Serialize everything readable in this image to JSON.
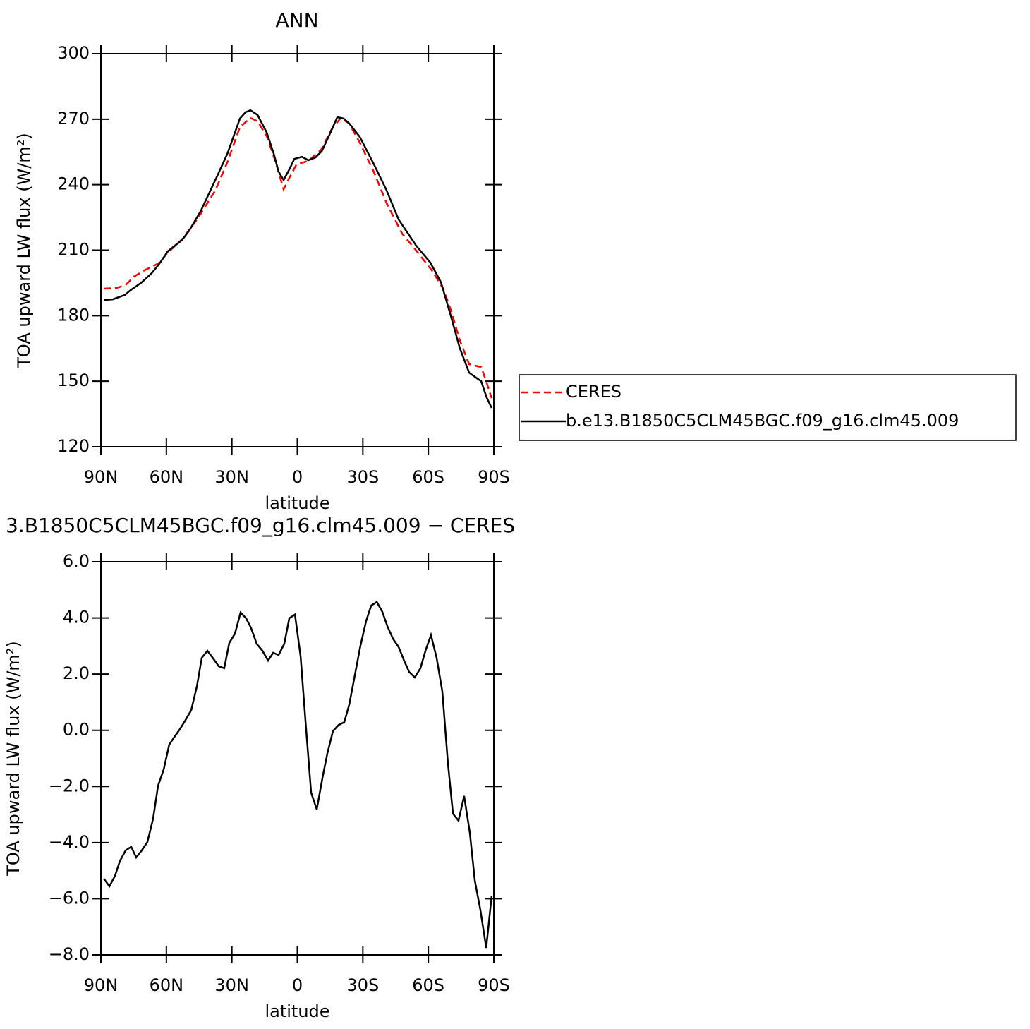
{
  "chart_data": [
    {
      "type": "line",
      "title": "ANN",
      "xlabel": "latitude",
      "ylabel": "TOA upward LW flux (W/m²)",
      "xlim": [
        90,
        -90
      ],
      "xticks": [
        {
          "value": 90,
          "label": "90N"
        },
        {
          "value": 60,
          "label": "60N"
        },
        {
          "value": 30,
          "label": "30N"
        },
        0,
        {
          "value": -30,
          "label": "30S"
        },
        {
          "value": -60,
          "label": "60S"
        },
        {
          "value": -90,
          "label": "90S"
        }
      ],
      "ylim": [
        120,
        300
      ],
      "yticks": [
        120,
        150,
        180,
        210,
        240,
        270,
        300
      ],
      "legend": "outside-right",
      "series": [
        {
          "name": "CERES",
          "color": "#ff0000",
          "dashed": true,
          "x": [
            88.7,
            82.9,
            78.7,
            74.8,
            70.0,
            63.5,
            59.3,
            52.8,
            45.7,
            37.6,
            32.1,
            26.3,
            21.5,
            18.2,
            14.0,
            10.1,
            6.3,
            3.7,
            0.4,
            -5.0,
            -10.9,
            -15.7,
            -19.9,
            -23.8,
            -28.6,
            -35.1,
            -40.9,
            -48.0,
            -54.5,
            -61.6,
            -66.8,
            -70.6,
            -74.4,
            -78.7,
            -84.2,
            -86.7,
            -89.0
          ],
          "values": [
            192.4,
            192.7,
            194,
            197.9,
            200.8,
            204,
            208.9,
            215,
            224.4,
            237.3,
            250.2,
            266.4,
            270.6,
            269,
            262.2,
            250.9,
            237.9,
            243.1,
            249.3,
            250.9,
            256,
            265.4,
            270.6,
            268,
            259.3,
            245.7,
            231.5,
            217.6,
            209.8,
            200.8,
            192.4,
            181.7,
            168.8,
            157.8,
            156.5,
            149.4,
            142.2
          ]
        },
        {
          "name": "b.e13.B1850C5CLM45BGC.f09_g16.clm45.009",
          "color": "#000000",
          "dashed": false,
          "x": [
            88.7,
            84.5,
            79.0,
            76.4,
            71.6,
            66.7,
            63.5,
            59.3,
            52.8,
            49.6,
            44.1,
            36.7,
            32.1,
            26.3,
            23.7,
            21.5,
            18.2,
            14.0,
            10.8,
            8.6,
            6.3,
            3.7,
            1.4,
            -2.1,
            -5.0,
            -8.3,
            -11.2,
            -14.1,
            -18.3,
            -21.2,
            -23.8,
            -28.6,
            -35.1,
            -40.9,
            -46.4,
            -54.5,
            -60.9,
            -65.8,
            -68.0,
            -70.6,
            -74.4,
            -78.7,
            -84.2,
            -86.7,
            -89.0
          ],
          "values": [
            187.2,
            187.5,
            189.5,
            191.7,
            195,
            199.5,
            203.4,
            209.5,
            214.7,
            218.9,
            228.2,
            244,
            254.1,
            270.3,
            273.2,
            274.1,
            271.9,
            263.8,
            254.1,
            246,
            242.1,
            247,
            251.8,
            252.8,
            251.2,
            252.5,
            255.4,
            261.5,
            270.9,
            270.3,
            268,
            261.9,
            249.3,
            237.3,
            224,
            212,
            204.3,
            195.3,
            187.8,
            178.8,
            165.2,
            153.9,
            150,
            142.6,
            137.8
          ]
        }
      ]
    },
    {
      "type": "line",
      "title": "3.B1850C5CLM45BGC.f09_g16.clm45.009 − CERES",
      "xlabel": "latitude",
      "ylabel": "TOA upward LW flux (W/m²)",
      "xlim": [
        90,
        -90
      ],
      "xticks": [
        {
          "value": 90,
          "label": "90N"
        },
        {
          "value": 60,
          "label": "60N"
        },
        {
          "value": 30,
          "label": "30N"
        },
        0,
        {
          "value": -30,
          "label": "30S"
        },
        {
          "value": -60,
          "label": "60S"
        },
        {
          "value": -90,
          "label": "90S"
        }
      ],
      "ylim": [
        -8,
        6
      ],
      "yticks": [
        {
          "value": -8,
          "label": "−8.0"
        },
        {
          "value": -6,
          "label": "−6.0"
        },
        {
          "value": -4,
          "label": "−4.0"
        },
        {
          "value": -2,
          "label": "−2.0"
        },
        {
          "value": 0,
          "label": "0.0"
        },
        {
          "value": 2,
          "label": "2.0"
        },
        {
          "value": 4,
          "label": "4.0"
        },
        {
          "value": 6,
          "label": "6.0"
        }
      ],
      "series": [
        {
          "color": "#000000",
          "dashed": false,
          "x": [
            88.7,
            86.1,
            83.5,
            81.3,
            78.7,
            76.1,
            73.8,
            71.3,
            68.7,
            66.1,
            63.8,
            61.2,
            58.7,
            56.1,
            53.8,
            51.2,
            48.6,
            46.0,
            43.8,
            41.2,
            38.6,
            36.0,
            33.5,
            31.2,
            28.6,
            26.0,
            23.5,
            21.2,
            18.6,
            16.0,
            13.4,
            11.1,
            8.6,
            6.0,
            3.7,
            1.1,
            -1.5,
            -3.7,
            -6.3,
            -8.9,
            -11.5,
            -13.7,
            -16.3,
            -18.9,
            -21.5,
            -23.8,
            -26.3,
            -28.9,
            -31.5,
            -33.8,
            -36.4,
            -38.9,
            -41.2,
            -43.8,
            -46.4,
            -48.9,
            -51.2,
            -53.8,
            -56.4,
            -58.7,
            -61.2,
            -63.8,
            -66.4,
            -69.0,
            -71.3,
            -73.8,
            -76.4,
            -79.0,
            -81.3,
            -83.9,
            -86.5,
            -89.0
          ],
          "values": [
            -5.28,
            -5.56,
            -5.18,
            -4.66,
            -4.28,
            -4.15,
            -4.53,
            -4.28,
            -3.98,
            -3.15,
            -1.97,
            -1.39,
            -0.51,
            -0.21,
            0.04,
            0.37,
            0.72,
            1.58,
            2.58,
            2.83,
            2.56,
            2.28,
            2.21,
            3.11,
            3.44,
            4.19,
            3.99,
            3.64,
            3.08,
            2.83,
            2.48,
            2.76,
            2.68,
            3.08,
            3.99,
            4.12,
            2.63,
            0.37,
            -2.22,
            -2.82,
            -1.69,
            -0.84,
            -0.03,
            0.19,
            0.29,
            0.92,
            1.95,
            3.01,
            3.89,
            4.44,
            4.57,
            4.22,
            3.71,
            3.26,
            2.96,
            2.48,
            2.08,
            1.88,
            2.21,
            2.83,
            3.39,
            2.58,
            1.38,
            -1.19,
            -2.97,
            -3.22,
            -2.34,
            -3.65,
            -5.36,
            -6.42,
            -7.75,
            -5.91
          ]
        }
      ]
    }
  ]
}
